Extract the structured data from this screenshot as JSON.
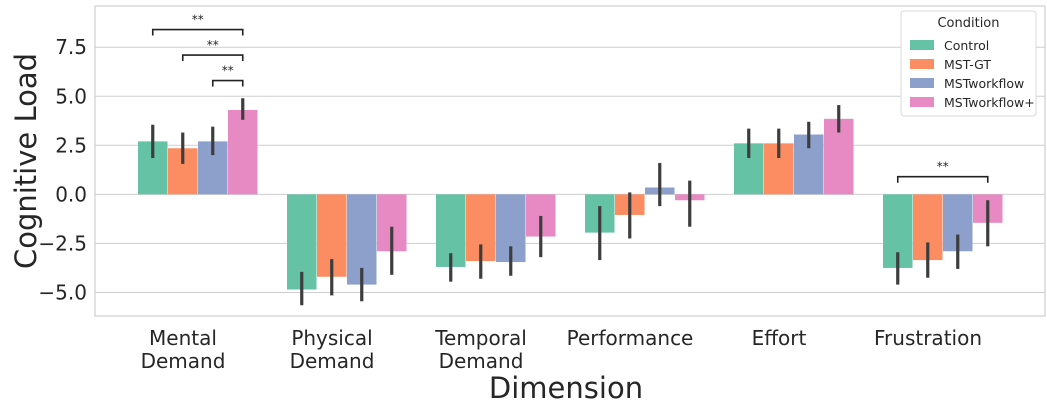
{
  "chart_data": {
    "type": "bar",
    "title": "",
    "xlabel": "Dimension",
    "ylabel": "Cognitive Load",
    "ylim": [
      -6.2,
      9.6
    ],
    "yticks": [
      -5.0,
      -2.5,
      0.0,
      2.5,
      5.0,
      7.5
    ],
    "ytick_labels": [
      "−5.0",
      "−2.5",
      "0.0",
      "2.5",
      "5.0",
      "7.5"
    ],
    "categories": [
      [
        "Mental",
        "Demand"
      ],
      [
        "Physical",
        "Demand"
      ],
      [
        "Temporal",
        "Demand"
      ],
      [
        "Performance"
      ],
      [
        "Effort"
      ],
      [
        "Frustration"
      ]
    ],
    "grid": "horizontal",
    "legend": {
      "title": "Condition",
      "placement": "top-right"
    },
    "series": [
      {
        "name": "Control",
        "color": "#66c2a5",
        "values": [
          2.7,
          -4.85,
          -3.7,
          -1.95,
          2.6,
          -3.75
        ],
        "ci": [
          [
            1.85,
            3.55
          ],
          [
            -5.65,
            -3.95
          ],
          [
            -4.45,
            -3.0
          ],
          [
            -3.35,
            -0.6
          ],
          [
            1.85,
            3.35
          ],
          [
            -4.6,
            -2.95
          ]
        ]
      },
      {
        "name": "MST-GT",
        "color": "#fc8d62",
        "values": [
          2.35,
          -4.2,
          -3.4,
          -1.05,
          2.6,
          -3.35
        ],
        "ci": [
          [
            1.55,
            3.15
          ],
          [
            -5.15,
            -3.3
          ],
          [
            -4.3,
            -2.55
          ],
          [
            -2.25,
            0.1
          ],
          [
            1.85,
            3.35
          ],
          [
            -4.25,
            -2.45
          ]
        ]
      },
      {
        "name": "MSTworkflow",
        "color": "#8da0cb",
        "values": [
          2.7,
          -4.6,
          -3.45,
          0.35,
          3.05,
          -2.9
        ],
        "ci": [
          [
            2.0,
            3.45
          ],
          [
            -5.45,
            -3.75
          ],
          [
            -4.15,
            -2.65
          ],
          [
            -0.6,
            1.6
          ],
          [
            2.35,
            3.7
          ],
          [
            -3.8,
            -2.05
          ]
        ]
      },
      {
        "name": "MSTworkflow+",
        "color": "#e78ac3",
        "values": [
          4.3,
          -2.9,
          -2.15,
          -0.3,
          3.85,
          -1.45
        ],
        "ci": [
          [
            3.8,
            4.9
          ],
          [
            -4.1,
            -1.65
          ],
          [
            -3.2,
            -1.1
          ],
          [
            -1.65,
            0.7
          ],
          [
            3.15,
            4.55
          ],
          [
            -2.65,
            -0.3
          ]
        ]
      }
    ],
    "significance": [
      {
        "category": 0,
        "from_series": 0,
        "to_series": 3,
        "y": 8.4,
        "label": "**"
      },
      {
        "category": 0,
        "from_series": 1,
        "to_series": 3,
        "y": 7.1,
        "label": "**"
      },
      {
        "category": 0,
        "from_series": 2,
        "to_series": 3,
        "y": 5.8,
        "label": "**"
      },
      {
        "category": 5,
        "from_series": 0,
        "to_series": 3,
        "y": 0.9,
        "label": "**"
      }
    ]
  }
}
